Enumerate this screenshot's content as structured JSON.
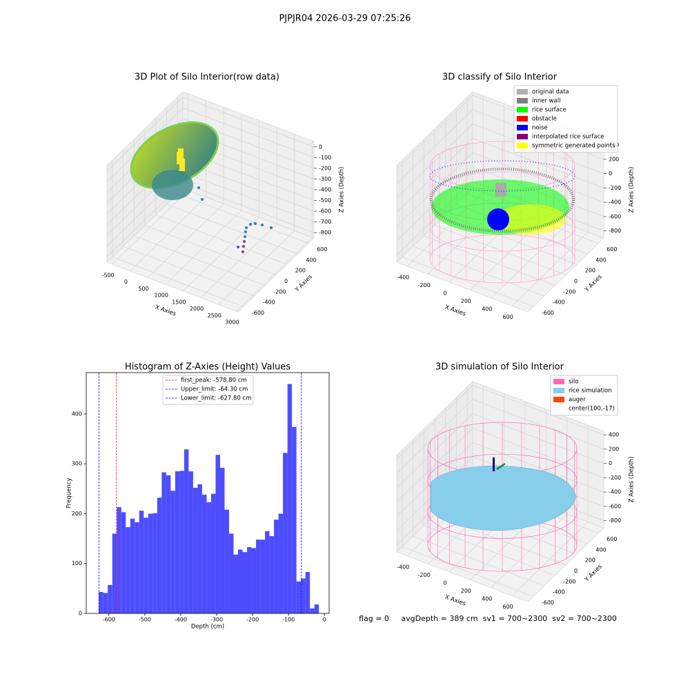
{
  "title": "PJPJR04 2026-03-29 07:25:26",
  "footer": "flag = 0     avgDepth = 389 cm  sv1 = 700~2300  sv2 = 700~2300",
  "chart_data": [
    {
      "type": "scatter3d",
      "title": "3D Plot of Silo Interior(row data)",
      "xlabel": "X Axies",
      "ylabel": "Y Axies",
      "zlabel": "Z Axies (Depth)",
      "xlim": [
        -650,
        3050
      ],
      "ylim": [
        -700,
        700
      ],
      "zlim": [
        -850,
        50
      ],
      "xticks": [
        -500,
        0,
        500,
        1000,
        1500,
        2000,
        2500,
        3000
      ],
      "yticks": [
        -600,
        -400,
        -200,
        0,
        200,
        400,
        600
      ],
      "zticks": [
        0,
        -100,
        -200,
        -300,
        -400,
        -500,
        -600,
        -700,
        -800
      ]
    },
    {
      "type": "classify3d",
      "title": "3D classify of Silo Interior",
      "xlabel": "X Axies",
      "ylabel": "Y Axies",
      "zlabel": "Z Axies (Depth)",
      "xlim": [
        -500,
        750
      ],
      "ylim": [
        -700,
        700
      ],
      "zlim": [
        -900,
        450
      ],
      "xticks": [
        -400,
        -200,
        0,
        200,
        400,
        600
      ],
      "yticks": [
        -600,
        -400,
        -200,
        0,
        200,
        400,
        600
      ],
      "zticks": [
        400,
        200,
        0,
        -200,
        -400,
        -600,
        -800
      ],
      "legend": [
        {
          "name": "original data",
          "color": "#b0b0b0"
        },
        {
          "name": "inner wall",
          "color": "#808080"
        },
        {
          "name": "rice surface",
          "color": "#00ff00"
        },
        {
          "name": "obstacle",
          "color": "#ff0000"
        },
        {
          "name": "noise",
          "color": "#0000ff"
        },
        {
          "name": "interpolated rice surface",
          "color": "#800080"
        },
        {
          "name": "symmetric generated points",
          "color": "#ffff00"
        }
      ]
    },
    {
      "type": "histogram",
      "title": "Histogram of Z-Axies (Height) Values",
      "xlabel": "Depth (cm)",
      "ylabel": "Frequency",
      "color": "#4d4dff",
      "xlim": [
        -663,
        13
      ],
      "ylim": [
        0,
        483
      ],
      "xticks": [
        -600,
        -500,
        -400,
        -300,
        -200,
        -100,
        0
      ],
      "yticks": [
        0,
        100,
        200,
        300,
        400
      ],
      "bins": [
        -628,
        -615.5,
        -603,
        -590.5,
        -578,
        -565.5,
        -553,
        -540.5,
        -528,
        -515.5,
        -503,
        -490.5,
        -478,
        -465.5,
        -453,
        -440.5,
        -428,
        -415.5,
        -403,
        -390.5,
        -378,
        -365.5,
        -353,
        -340.5,
        -328,
        -315.5,
        -303,
        -290.5,
        -278,
        -265.5,
        -253,
        -240.5,
        -228,
        -215.5,
        -203,
        -190.5,
        -178,
        -165.5,
        -153,
        -140.5,
        -128,
        -115.5,
        -103,
        -90.5,
        -78,
        -65.5,
        -53,
        -40.5,
        -28,
        -15.5
      ],
      "values": [
        43,
        41,
        57,
        160,
        213,
        203,
        173,
        190,
        183,
        206,
        192,
        200,
        201,
        232,
        283,
        277,
        246,
        285,
        286,
        329,
        285,
        252,
        259,
        238,
        223,
        240,
        318,
        292,
        208,
        160,
        118,
        128,
        123,
        133,
        131,
        148,
        148,
        165,
        155,
        188,
        200,
        322,
        460,
        374,
        64,
        70,
        83,
        10,
        18
      ],
      "vlines": [
        {
          "value": -578.8,
          "label": "first_peak: -578.80 cm",
          "color": "#ff0000"
        },
        {
          "value": -64.3,
          "label": "Upper_limit: -64.30 cm",
          "color": "#0000ff"
        },
        {
          "value": -627.8,
          "label": "Lower_limit: -627.80 cm",
          "color": "#0000ff"
        }
      ]
    },
    {
      "type": "surface3d",
      "title": "3D simulation of Silo Interior",
      "xlabel": "X Axies",
      "ylabel": "Y Axies",
      "zlabel": "Z Axies (Depth)",
      "xlim": [
        -500,
        750
      ],
      "ylim": [
        -700,
        700
      ],
      "zlim": [
        -900,
        450
      ],
      "xticks": [
        -400,
        -200,
        0,
        200,
        400,
        600
      ],
      "yticks": [
        -600,
        -400,
        -200,
        0,
        200,
        400,
        600
      ],
      "zticks": [
        400,
        200,
        0,
        -200,
        -400,
        -600,
        -800
      ],
      "legend": [
        {
          "name": "silo",
          "color": "#ff69b4"
        },
        {
          "name": "rice simulation",
          "color": "#87ceeb"
        },
        {
          "name": "auger",
          "color": "#ff4500"
        },
        {
          "name": "center(100,-17)"
        }
      ]
    }
  ]
}
